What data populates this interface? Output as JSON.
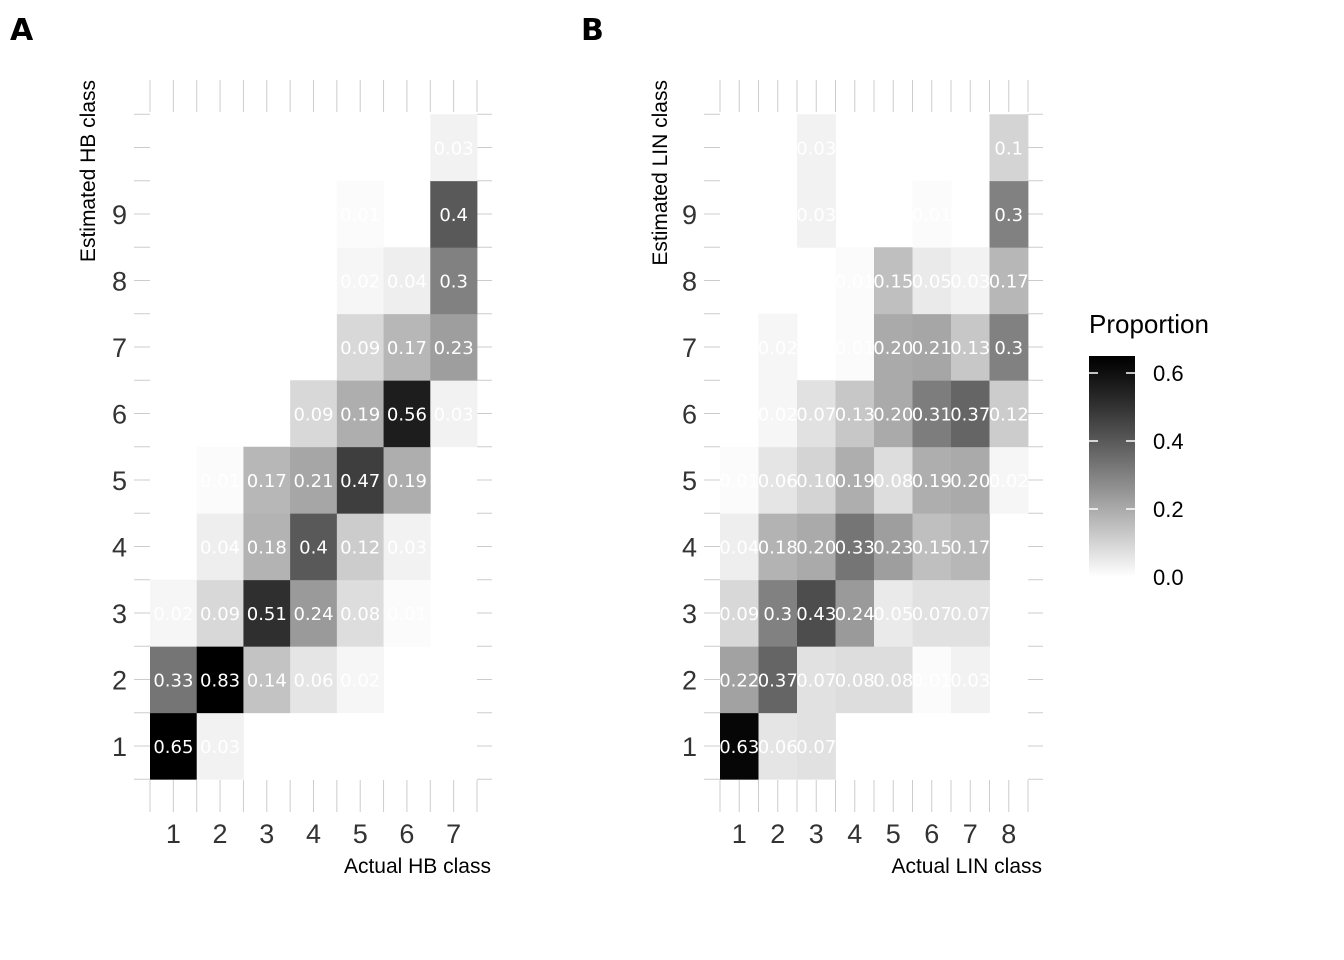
{
  "chart_data": [
    {
      "type": "heatmap",
      "panel_label": "A",
      "xlabel": "Actual HB class",
      "ylabel": "Estimated HB class",
      "x_categories": [
        "1",
        "2",
        "3",
        "4",
        "5",
        "6",
        "7"
      ],
      "y_categories": [
        "1",
        "2",
        "3",
        "4",
        "5",
        "6",
        "7",
        "8",
        "9"
      ],
      "y_tick_labels": [
        "1",
        "2",
        "3",
        "4",
        "5",
        "6",
        "7",
        "8",
        "9",
        ""
      ],
      "cells": [
        {
          "x": 1,
          "y": 1,
          "value": 0.65,
          "label": "0.65"
        },
        {
          "x": 1,
          "y": 2,
          "value": 0.33,
          "label": "0.33"
        },
        {
          "x": 1,
          "y": 3,
          "value": 0.02,
          "label": "0.02"
        },
        {
          "x": 2,
          "y": 1,
          "value": 0.03,
          "label": "0.03"
        },
        {
          "x": 2,
          "y": 2,
          "value": 0.83,
          "label": "0.83"
        },
        {
          "x": 2,
          "y": 3,
          "value": 0.09,
          "label": "0.09"
        },
        {
          "x": 2,
          "y": 4,
          "value": 0.04,
          "label": "0.04"
        },
        {
          "x": 2,
          "y": 5,
          "value": 0.01,
          "label": "0.01"
        },
        {
          "x": 3,
          "y": 2,
          "value": 0.14,
          "label": "0.14"
        },
        {
          "x": 3,
          "y": 3,
          "value": 0.51,
          "label": "0.51"
        },
        {
          "x": 3,
          "y": 4,
          "value": 0.18,
          "label": "0.18"
        },
        {
          "x": 3,
          "y": 5,
          "value": 0.17,
          "label": "0.17"
        },
        {
          "x": 4,
          "y": 2,
          "value": 0.06,
          "label": "0.06"
        },
        {
          "x": 4,
          "y": 3,
          "value": 0.24,
          "label": "0.24"
        },
        {
          "x": 4,
          "y": 4,
          "value": 0.4,
          "label": "0.4"
        },
        {
          "x": 4,
          "y": 5,
          "value": 0.21,
          "label": "0.21"
        },
        {
          "x": 4,
          "y": 6,
          "value": 0.09,
          "label": "0.09"
        },
        {
          "x": 5,
          "y": 2,
          "value": 0.02,
          "label": "0.02"
        },
        {
          "x": 5,
          "y": 3,
          "value": 0.08,
          "label": "0.08"
        },
        {
          "x": 5,
          "y": 4,
          "value": 0.12,
          "label": "0.12"
        },
        {
          "x": 5,
          "y": 5,
          "value": 0.47,
          "label": "0.47"
        },
        {
          "x": 5,
          "y": 6,
          "value": 0.19,
          "label": "0.19"
        },
        {
          "x": 5,
          "y": 7,
          "value": 0.09,
          "label": "0.09"
        },
        {
          "x": 5,
          "y": 8,
          "value": 0.02,
          "label": "0.02"
        },
        {
          "x": 5,
          "y": 9,
          "value": 0.01,
          "label": "0.01"
        },
        {
          "x": 6,
          "y": 3,
          "value": 0.01,
          "label": "0.01"
        },
        {
          "x": 6,
          "y": 4,
          "value": 0.03,
          "label": "0.03"
        },
        {
          "x": 6,
          "y": 5,
          "value": 0.19,
          "label": "0.19"
        },
        {
          "x": 6,
          "y": 6,
          "value": 0.56,
          "label": "0.56"
        },
        {
          "x": 6,
          "y": 7,
          "value": 0.17,
          "label": "0.17"
        },
        {
          "x": 6,
          "y": 8,
          "value": 0.04,
          "label": "0.04"
        },
        {
          "x": 7,
          "y": 6,
          "value": 0.03,
          "label": "0.03"
        },
        {
          "x": 7,
          "y": 7,
          "value": 0.23,
          "label": "0.23"
        },
        {
          "x": 7,
          "y": 8,
          "value": 0.3,
          "label": "0.3"
        },
        {
          "x": 7,
          "y": 9,
          "value": 0.4,
          "label": "0.4"
        },
        {
          "x": 7,
          "y": 10,
          "value": 0.03,
          "label": "0.03"
        }
      ]
    },
    {
      "type": "heatmap",
      "panel_label": "B",
      "xlabel": "Actual LIN class",
      "ylabel": "Estimated LIN class",
      "x_categories": [
        "1",
        "2",
        "3",
        "4",
        "5",
        "6",
        "7",
        "8"
      ],
      "y_categories": [
        "1",
        "2",
        "3",
        "4",
        "5",
        "6",
        "7",
        "8",
        "9"
      ],
      "y_tick_labels": [
        "1",
        "2",
        "3",
        "4",
        "5",
        "6",
        "7",
        "8",
        "9",
        ""
      ],
      "cells": [
        {
          "x": 1,
          "y": 1,
          "value": 0.63,
          "label": "0.63"
        },
        {
          "x": 1,
          "y": 2,
          "value": 0.22,
          "label": "0.22"
        },
        {
          "x": 1,
          "y": 3,
          "value": 0.09,
          "label": "0.09"
        },
        {
          "x": 1,
          "y": 4,
          "value": 0.04,
          "label": "0.04"
        },
        {
          "x": 1,
          "y": 5,
          "value": 0.01,
          "label": "0.01"
        },
        {
          "x": 2,
          "y": 1,
          "value": 0.06,
          "label": "0.06"
        },
        {
          "x": 2,
          "y": 2,
          "value": 0.37,
          "label": "0.37"
        },
        {
          "x": 2,
          "y": 3,
          "value": 0.3,
          "label": "0.3"
        },
        {
          "x": 2,
          "y": 4,
          "value": 0.18,
          "label": "0.18"
        },
        {
          "x": 2,
          "y": 5,
          "value": 0.06,
          "label": "0.06"
        },
        {
          "x": 2,
          "y": 6,
          "value": 0.02,
          "label": "0.02"
        },
        {
          "x": 2,
          "y": 7,
          "value": 0.02,
          "label": "0.02"
        },
        {
          "x": 3,
          "y": 1,
          "value": 0.07,
          "label": "0.07"
        },
        {
          "x": 3,
          "y": 2,
          "value": 0.07,
          "label": "0.07"
        },
        {
          "x": 3,
          "y": 3,
          "value": 0.43,
          "label": "0.43"
        },
        {
          "x": 3,
          "y": 4,
          "value": 0.2,
          "label": "0.20"
        },
        {
          "x": 3,
          "y": 5,
          "value": 0.1,
          "label": "0.10"
        },
        {
          "x": 3,
          "y": 6,
          "value": 0.07,
          "label": "0.07"
        },
        {
          "x": 3,
          "y": 9,
          "value": 0.03,
          "label": "0.03"
        },
        {
          "x": 3,
          "y": 10,
          "value": 0.03,
          "label": "0.03"
        },
        {
          "x": 4,
          "y": 2,
          "value": 0.08,
          "label": "0.08"
        },
        {
          "x": 4,
          "y": 3,
          "value": 0.24,
          "label": "0.24"
        },
        {
          "x": 4,
          "y": 4,
          "value": 0.33,
          "label": "0.33"
        },
        {
          "x": 4,
          "y": 5,
          "value": 0.19,
          "label": "0.19"
        },
        {
          "x": 4,
          "y": 6,
          "value": 0.13,
          "label": "0.13"
        },
        {
          "x": 4,
          "y": 7,
          "value": 0.01,
          "label": "0.01"
        },
        {
          "x": 4,
          "y": 8,
          "value": 0.01,
          "label": "0.01"
        },
        {
          "x": 5,
          "y": 2,
          "value": 0.08,
          "label": "0.08"
        },
        {
          "x": 5,
          "y": 3,
          "value": 0.05,
          "label": "0.05"
        },
        {
          "x": 5,
          "y": 4,
          "value": 0.23,
          "label": "0.23"
        },
        {
          "x": 5,
          "y": 5,
          "value": 0.08,
          "label": "0.08"
        },
        {
          "x": 5,
          "y": 6,
          "value": 0.2,
          "label": "0.20"
        },
        {
          "x": 5,
          "y": 7,
          "value": 0.2,
          "label": "0.20"
        },
        {
          "x": 5,
          "y": 8,
          "value": 0.15,
          "label": "0.15"
        },
        {
          "x": 6,
          "y": 2,
          "value": 0.01,
          "label": "0.01"
        },
        {
          "x": 6,
          "y": 3,
          "value": 0.07,
          "label": "0.07"
        },
        {
          "x": 6,
          "y": 4,
          "value": 0.15,
          "label": "0.15"
        },
        {
          "x": 6,
          "y": 5,
          "value": 0.19,
          "label": "0.19"
        },
        {
          "x": 6,
          "y": 6,
          "value": 0.31,
          "label": "0.31"
        },
        {
          "x": 6,
          "y": 7,
          "value": 0.21,
          "label": "0.21"
        },
        {
          "x": 6,
          "y": 8,
          "value": 0.05,
          "label": "0.05"
        },
        {
          "x": 6,
          "y": 9,
          "value": 0.01,
          "label": "0.01"
        },
        {
          "x": 7,
          "y": 2,
          "value": 0.03,
          "label": "0.03"
        },
        {
          "x": 7,
          "y": 3,
          "value": 0.07,
          "label": "0.07"
        },
        {
          "x": 7,
          "y": 4,
          "value": 0.17,
          "label": "0.17"
        },
        {
          "x": 7,
          "y": 5,
          "value": 0.2,
          "label": "0.20"
        },
        {
          "x": 7,
          "y": 6,
          "value": 0.37,
          "label": "0.37"
        },
        {
          "x": 7,
          "y": 7,
          "value": 0.13,
          "label": "0.13"
        },
        {
          "x": 7,
          "y": 8,
          "value": 0.03,
          "label": "0.03"
        },
        {
          "x": 8,
          "y": 5,
          "value": 0.02,
          "label": "0.02"
        },
        {
          "x": 8,
          "y": 6,
          "value": 0.12,
          "label": "0.12"
        },
        {
          "x": 8,
          "y": 7,
          "value": 0.3,
          "label": "0.3"
        },
        {
          "x": 8,
          "y": 8,
          "value": 0.17,
          "label": "0.17"
        },
        {
          "x": 8,
          "y": 9,
          "value": 0.3,
          "label": "0.3"
        },
        {
          "x": 8,
          "y": 10,
          "value": 0.1,
          "label": "0.1"
        }
      ]
    }
  ],
  "legend": {
    "title": "Proportion",
    "ticks": [
      {
        "value": 0.6,
        "label": "0.6"
      },
      {
        "value": 0.4,
        "label": "0.4"
      },
      {
        "value": 0.2,
        "label": "0.2"
      },
      {
        "value": 0.0,
        "label": "0.0"
      }
    ],
    "scale_max": 0.65,
    "color_low": "#ffffff",
    "color_high": "#000000"
  }
}
